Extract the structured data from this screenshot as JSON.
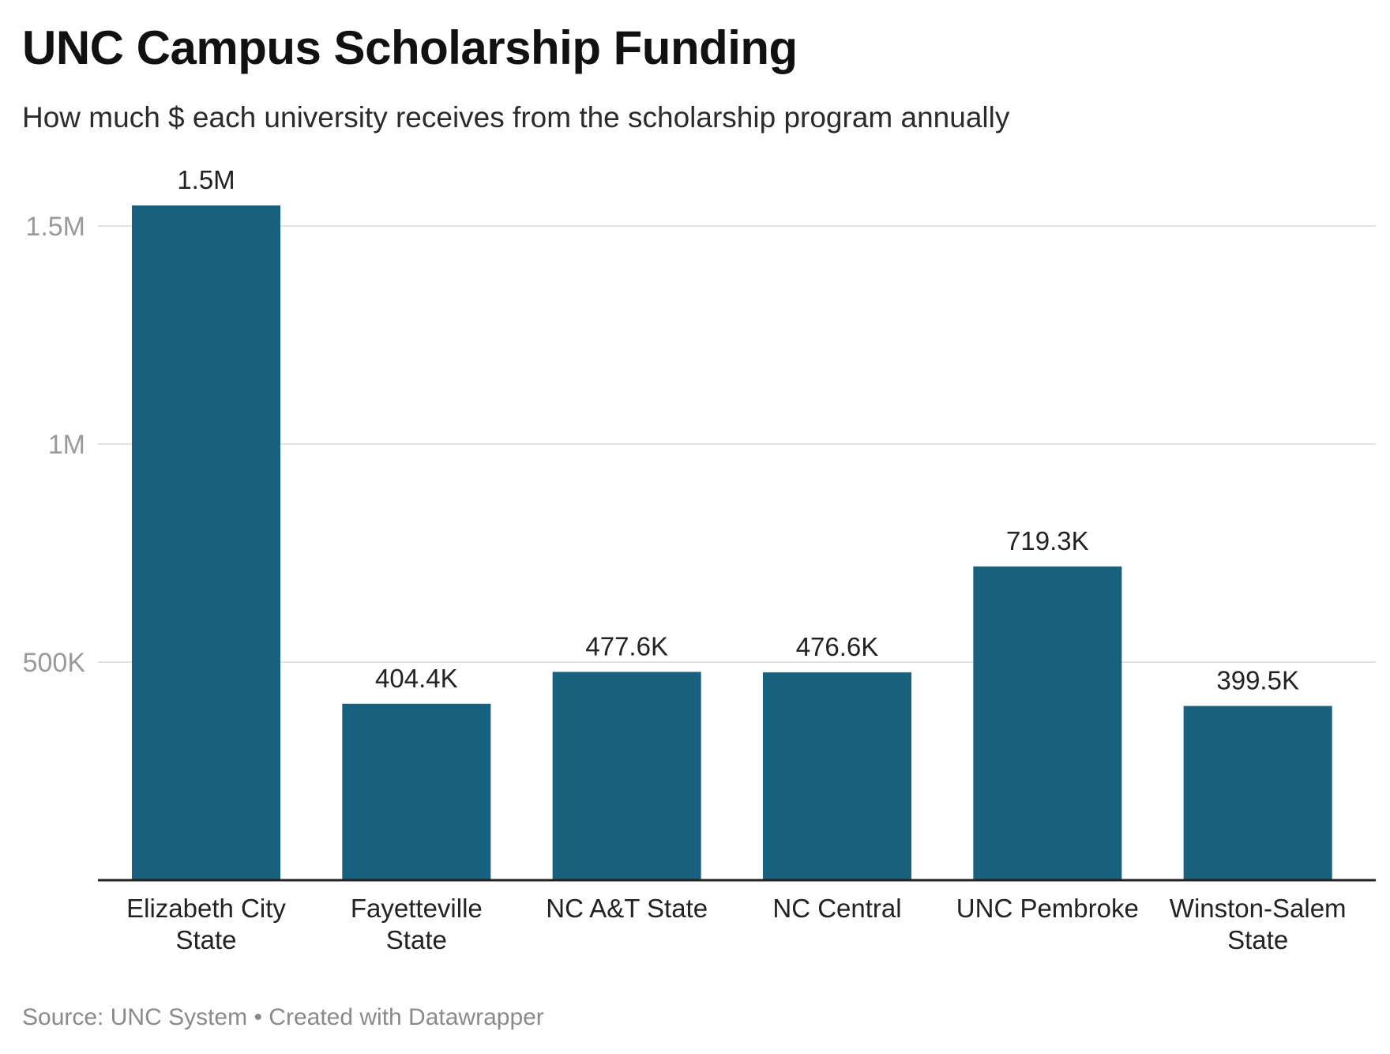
{
  "header": {
    "title": "UNC Campus Scholarship Funding",
    "subtitle": "How much $ each university receives from the scholarship program annually"
  },
  "footer": {
    "source_label": "Source:",
    "source": "UNC System",
    "separator": "•",
    "credit": "Created with Datawrapper"
  },
  "colors": {
    "bar": "#18617e"
  },
  "chart_data": {
    "type": "bar",
    "title": "UNC Campus Scholarship Funding",
    "subtitle": "How much $ each university receives from the scholarship program annually",
    "categories": [
      [
        "Elizabeth City",
        "State"
      ],
      [
        "Fayetteville",
        "State"
      ],
      [
        "NC A&T State"
      ],
      [
        "NC Central"
      ],
      [
        "UNC Pembroke"
      ],
      [
        "Winston-Salem",
        "State"
      ]
    ],
    "values": [
      1547000,
      404400,
      477600,
      476600,
      719300,
      399500
    ],
    "value_labels": [
      "1.5M",
      "404.4K",
      "477.6K",
      "476.6K",
      "719.3K",
      "399.5K"
    ],
    "yticks": [
      {
        "value": 500000,
        "label": "500K"
      },
      {
        "value": 1000000,
        "label": "1M"
      },
      {
        "value": 1500000,
        "label": "1.5M"
      }
    ],
    "ylim": [
      0,
      1500000
    ],
    "xlabel": "",
    "ylabel": "",
    "grid": true,
    "legend": "none"
  }
}
